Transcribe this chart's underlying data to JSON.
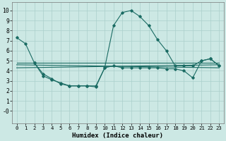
{
  "background_color": "#cce8e4",
  "grid_color": "#aacfcb",
  "line_color": "#1a6b63",
  "xlabel": "Humidex (Indice chaleur)",
  "xlim": [
    -0.5,
    23.5
  ],
  "ylim": [
    -1.2,
    10.8
  ],
  "xticks": [
    0,
    1,
    2,
    3,
    4,
    5,
    6,
    7,
    8,
    9,
    10,
    11,
    12,
    13,
    14,
    15,
    16,
    17,
    18,
    19,
    20,
    21,
    22,
    23
  ],
  "yticks": [
    0,
    1,
    2,
    3,
    4,
    5,
    6,
    7,
    8,
    9,
    10
  ],
  "ytick_labels": [
    "-0",
    "1",
    "2",
    "3",
    "4",
    "5",
    "6",
    "7",
    "8",
    "9",
    "10"
  ],
  "spike_x": [
    0,
    1,
    2,
    3,
    4,
    5,
    6,
    7,
    8,
    9,
    10,
    11,
    12,
    13,
    14,
    15,
    16,
    17,
    18,
    19,
    20,
    21,
    22,
    23
  ],
  "spike_y": [
    7.3,
    6.7,
    5.1,
    4.8,
    4.8,
    4.8,
    4.8,
    4.8,
    4.8,
    4.8,
    4.8,
    4.8,
    4.8,
    4.8,
    4.8,
    4.8,
    4.8,
    4.8,
    4.8,
    4.8,
    4.8,
    4.8,
    4.8,
    4.8
  ],
  "line_big_x": [
    0,
    1,
    2,
    3,
    4,
    5,
    6,
    7,
    8,
    9,
    10,
    11,
    12,
    13,
    14,
    15,
    16,
    17,
    18,
    19,
    20,
    21,
    22,
    23
  ],
  "line_big_y": [
    7.3,
    6.7,
    5.1,
    4.8,
    4.8,
    4.8,
    4.8,
    4.8,
    4.8,
    4.8,
    4.8,
    4.8,
    4.8,
    4.8,
    4.8,
    4.8,
    4.8,
    4.8,
    4.8,
    4.8,
    4.8,
    4.8,
    4.8,
    4.8
  ],
  "curve1_x": [
    0,
    1,
    2,
    3,
    4,
    5,
    6,
    7,
    8,
    9,
    10,
    11,
    12,
    13,
    14,
    15,
    16,
    17,
    18,
    19,
    20,
    21,
    22,
    23
  ],
  "curve1_y": [
    7.3,
    6.7,
    5.0,
    4.7,
    4.5,
    4.3,
    4.1,
    3.9,
    3.8,
    3.7,
    3.7,
    4.0,
    4.4,
    4.7,
    4.9,
    5.0,
    5.1,
    5.1,
    5.0,
    4.9,
    4.6,
    4.5,
    4.7,
    4.7
  ],
  "curve2_x": [
    0,
    1,
    2,
    3,
    4,
    5,
    6,
    7,
    8,
    9,
    10,
    11,
    12,
    13,
    14,
    15,
    16,
    17,
    18,
    19,
    20,
    21,
    22,
    23
  ],
  "curve2_y": [
    4.8,
    4.8,
    4.8,
    4.8,
    4.8,
    4.8,
    4.8,
    4.8,
    4.8,
    4.8,
    4.8,
    4.8,
    4.8,
    4.8,
    4.8,
    4.8,
    4.8,
    4.8,
    4.8,
    4.8,
    4.8,
    4.8,
    4.8,
    4.8
  ],
  "curve3_x": [
    0,
    23
  ],
  "curve3_y": [
    4.6,
    4.3
  ],
  "curve4_x": [
    0,
    23
  ],
  "curve4_y": [
    4.3,
    4.6
  ],
  "main_x": [
    0,
    1,
    2,
    3,
    4,
    5,
    6,
    7,
    8,
    9,
    10,
    11,
    12,
    13,
    14,
    15,
    16,
    17,
    18,
    19,
    20,
    21,
    22,
    23
  ],
  "main_y": [
    7.3,
    6.7,
    4.8,
    3.7,
    3.2,
    2.7,
    2.5,
    2.5,
    2.5,
    2.4,
    4.3,
    8.5,
    9.8,
    10.0,
    9.4,
    8.5,
    7.1,
    6.0,
    4.5,
    4.5,
    4.5,
    5.0,
    5.2,
    4.5
  ],
  "sec_x": [
    2,
    3,
    4,
    5,
    6,
    7,
    8,
    9,
    10,
    11,
    12,
    13,
    14,
    15,
    16,
    17,
    18,
    19,
    20,
    21,
    22,
    23
  ],
  "sec_y": [
    4.8,
    3.5,
    3.1,
    2.8,
    2.5,
    2.5,
    2.5,
    2.5,
    4.3,
    4.5,
    4.3,
    4.3,
    4.3,
    4.3,
    4.3,
    4.2,
    4.2,
    4.0,
    3.3,
    5.0,
    5.2,
    4.5
  ]
}
